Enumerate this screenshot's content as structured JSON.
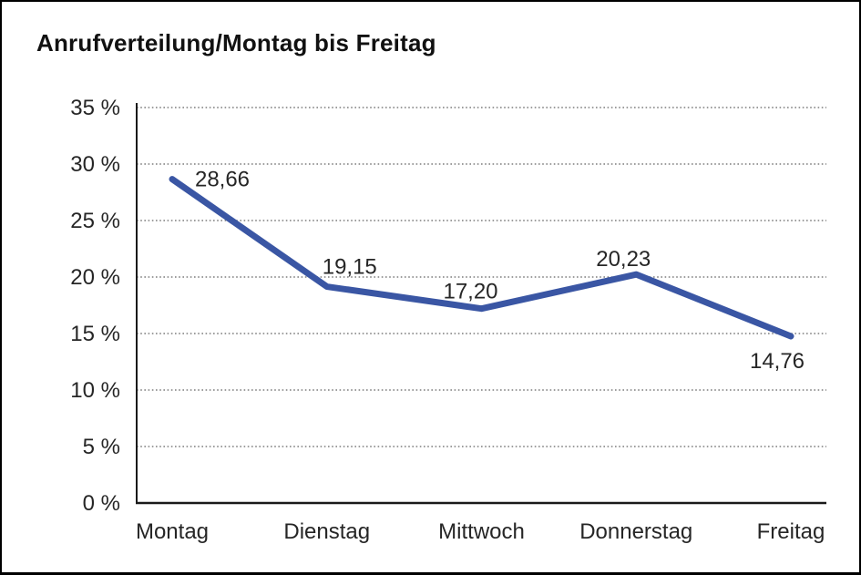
{
  "chart_data": {
    "type": "line",
    "title": "Anrufverteilung/Montag bis Freitag",
    "categories": [
      "Montag",
      "Dienstag",
      "Mittwoch",
      "Donnerstag",
      "Freitag"
    ],
    "series": [
      {
        "name": "Anrufverteilung",
        "values": [
          28.66,
          19.15,
          17.2,
          20.23,
          14.76
        ],
        "value_labels": [
          "28,66",
          "19,15",
          "17,20",
          "20,23",
          "14,76"
        ]
      }
    ],
    "xlabel": "",
    "ylabel": "",
    "ylim": [
      0,
      35
    ],
    "y_ticks": [
      0,
      5,
      10,
      15,
      20,
      25,
      30,
      35
    ],
    "y_tick_labels": [
      "0 %",
      "5 %",
      "10 %",
      "15 %",
      "20 %",
      "25 %",
      "30 %",
      "35 %"
    ],
    "grid": "horizontal-dotted",
    "legend_position": "none",
    "colors": {
      "line": "#3A56A4",
      "axis": "#1a1a1a",
      "grid": "#7d7d7d",
      "text": "#262626",
      "title_text": "#111111",
      "background": "#ffffff",
      "frame_border": "#000000"
    }
  }
}
